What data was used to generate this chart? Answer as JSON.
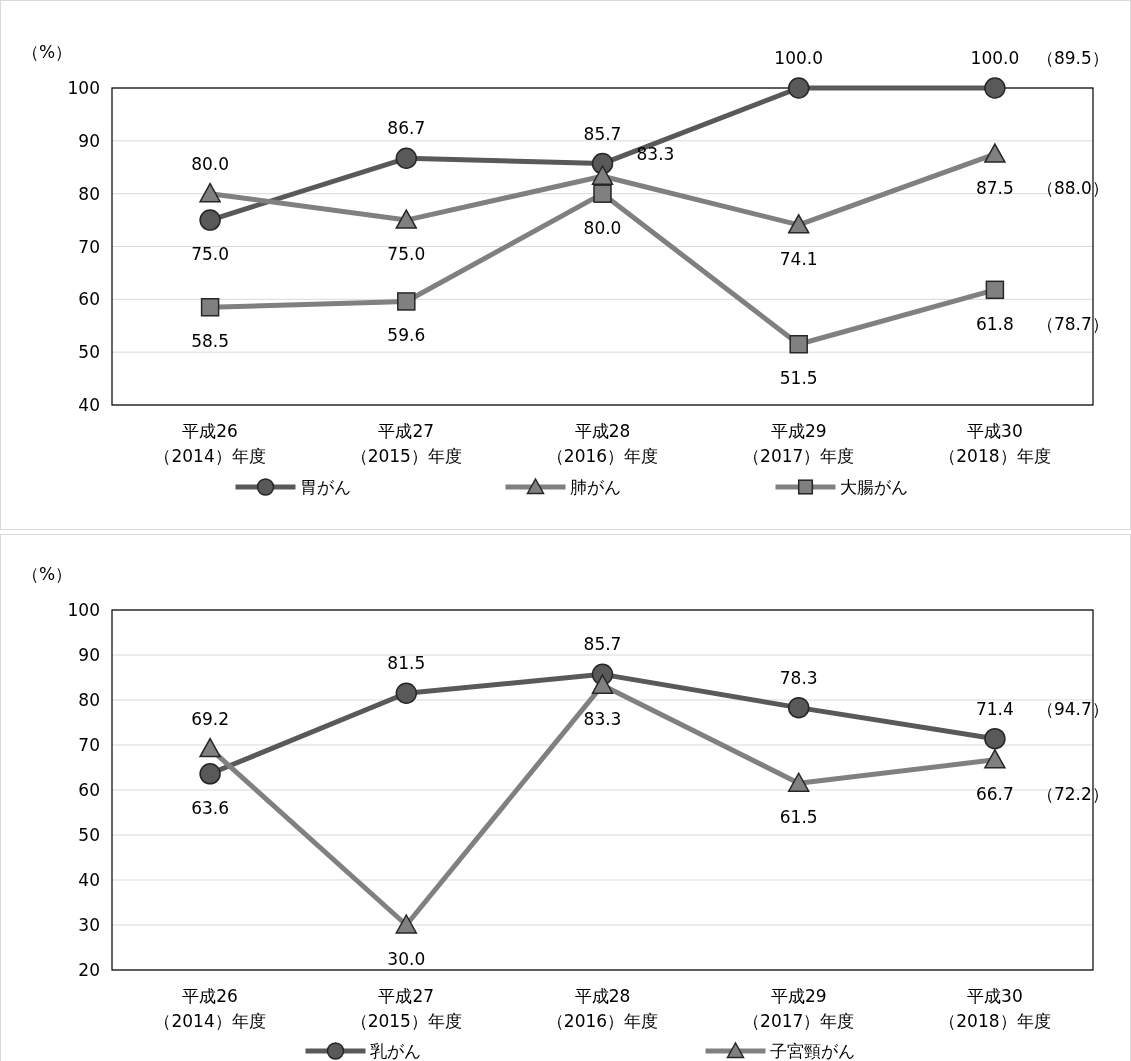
{
  "chart_data": [
    {
      "type": "line",
      "ylabel": "（%）",
      "categories": [
        "平成26\n（2014）年度",
        "平成27\n（2015）年度",
        "平成28\n（2016）年度",
        "平成29\n（2017）年度",
        "平成30\n（2018）年度"
      ],
      "ylim": [
        40,
        100
      ],
      "yticks": [
        40,
        50,
        60,
        70,
        80,
        90,
        100
      ],
      "grid": "y",
      "legend": "bottom",
      "series": [
        {
          "name": "胃がん",
          "color": "#595959",
          "marker": "circle",
          "values": [
            75.0,
            86.7,
            85.7,
            100.0,
            100.0
          ],
          "value_labels": [
            "75.0",
            "86.7",
            "85.7",
            "100.0",
            "100.0"
          ]
        },
        {
          "name": "肺がん",
          "color": "#808080",
          "marker": "triangle",
          "values": [
            80.0,
            75.0,
            83.3,
            74.1,
            87.5
          ],
          "value_labels": [
            "80.0",
            "75.0",
            "83.3",
            "74.1",
            "87.5"
          ]
        },
        {
          "name": "大腸がん",
          "color": "#808080",
          "marker": "square",
          "values": [
            58.5,
            59.6,
            80.0,
            51.5,
            61.8
          ],
          "value_labels": [
            "58.5",
            "59.6",
            "80.0",
            "51.5",
            "61.8"
          ]
        }
      ],
      "annotations": [
        {
          "text": "（89.5）",
          "x": "平成30\n（2018）年度",
          "y": 100.0
        },
        {
          "text": "（88.0）",
          "x": "平成30\n（2018）年度",
          "y": 87.5
        },
        {
          "text": "（78.7）",
          "x": "平成30\n（2018）年度",
          "y": 61.8
        }
      ]
    },
    {
      "type": "line",
      "ylabel": "（%）",
      "categories": [
        "平成26\n（2014）年度",
        "平成27\n（2015）年度",
        "平成28\n（2016）年度",
        "平成29\n（2017）年度",
        "平成30\n（2018）年度"
      ],
      "ylim": [
        20,
        100
      ],
      "yticks": [
        20,
        30,
        40,
        50,
        60,
        70,
        80,
        90,
        100
      ],
      "grid": "y",
      "legend": "bottom",
      "series": [
        {
          "name": "乳がん",
          "color": "#595959",
          "marker": "circle",
          "values": [
            63.6,
            81.5,
            85.7,
            78.3,
            71.4
          ],
          "value_labels": [
            "63.6",
            "81.5",
            "85.7",
            "78.3",
            "71.4"
          ]
        },
        {
          "name": "子宮頸がん",
          "color": "#808080",
          "marker": "triangle",
          "values": [
            69.2,
            30.0,
            83.3,
            61.5,
            66.7
          ],
          "value_labels": [
            "69.2",
            "30.0",
            "83.3",
            "61.5",
            "66.7"
          ]
        }
      ],
      "annotations": [
        {
          "text": "（94.7）",
          "x": "平成30\n（2018）年度",
          "y": 71.4
        },
        {
          "text": "（72.2）",
          "x": "平成30\n（2018）年度",
          "y": 66.7
        }
      ]
    }
  ]
}
